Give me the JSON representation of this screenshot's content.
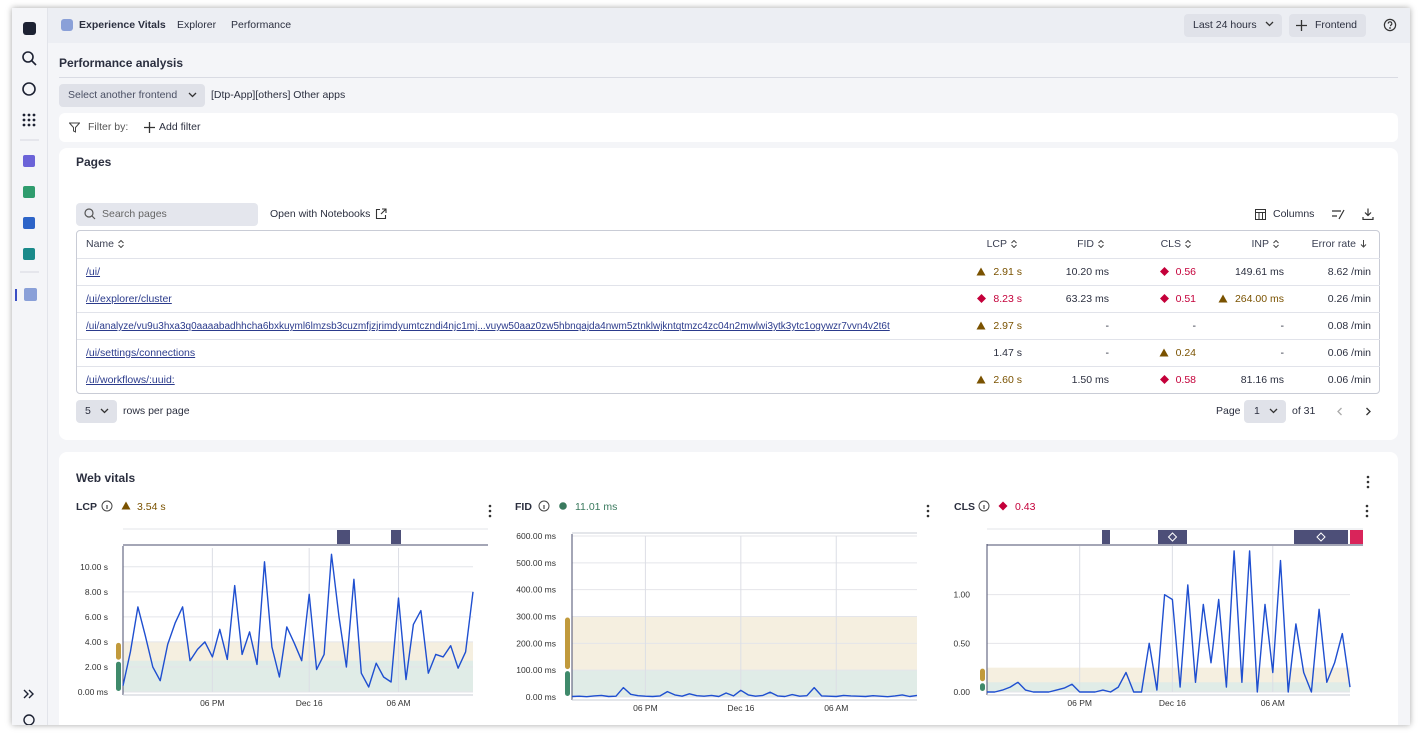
{
  "nav": {
    "app": "Experience Vitals",
    "tabs": [
      "Explorer",
      "Performance"
    ],
    "timeframe": "Last 24 hours",
    "frontend_button": "Frontend"
  },
  "header": {
    "title": "Performance analysis",
    "select_frontend": "Select another frontend",
    "current_frontend": "[Dtp-App][others] Other apps",
    "filter_label": "Filter by:",
    "add_filter": "Add filter"
  },
  "pages": {
    "title": "Pages",
    "search_placeholder": "Search pages",
    "open_notebooks": "Open with Notebooks",
    "columns_button": "Columns",
    "table": {
      "columns": [
        "Name",
        "LCP",
        "FID",
        "CLS",
        "INP",
        "Error rate"
      ],
      "rows": [
        [
          "/ui/",
          "2.91 s",
          "10.20 ms",
          "0.56",
          "149.61 ms",
          "8.62 /min"
        ],
        [
          "/ui/explorer/cluster",
          "8.23 s",
          "63.23 ms",
          "0.51",
          "264.00 ms",
          "0.26 /min"
        ],
        [
          "/ui/analyze/vu9u3hxa3q0aaaabadhhcha6bxkuyml6lmzsb3cuzmfjzjrimdyumtczndi4njc1mj...vuyw50aaz0zw5hbnqajda4nwm5ztnklwjkntqtmzc4zc04n2mwlwi3ytk3ytc1ogywzr7vvn4v2t6t",
          "2.97 s",
          "-",
          "-",
          "-",
          "0.08 /min"
        ],
        [
          "/ui/settings/connections",
          "1.47 s",
          "-",
          "0.24",
          "-",
          "0.06 /min"
        ],
        [
          "/ui/workflows/:uuid:",
          "2.60 s",
          "1.50 ms",
          "0.58",
          "81.16 ms",
          "0.06 /min"
        ]
      ]
    },
    "pagination": {
      "page_size": "5",
      "rows_per_page": "rows per page",
      "page_label": "Page",
      "page": "1",
      "page_count": "of 31"
    }
  },
  "web_vitals": {
    "title": "Web vitals"
  },
  "chart_data": [
    {
      "type": "line",
      "title": "LCP",
      "summary": "3.54 s",
      "color": "#1f4fd0",
      "grid": true,
      "x": [
        null,
        null,
        null,
        null,
        null,
        null,
        null,
        null,
        null,
        null,
        null,
        null,
        "06 PM",
        null,
        null,
        null,
        null,
        null,
        null,
        null,
        null,
        null,
        null,
        null,
        null,
        "Dec 16",
        null,
        null,
        null,
        null,
        null,
        null,
        null,
        null,
        null,
        null,
        null,
        "06 AM",
        null,
        null,
        null,
        null,
        null,
        null,
        null,
        null,
        null,
        null
      ],
      "values": [
        0.5,
        3.2,
        6.8,
        4.5,
        2.0,
        0.9,
        3.8,
        5.5,
        6.8,
        2.5,
        3.4,
        4.0,
        2.8,
        5.0,
        2.6,
        8.5,
        3.0,
        4.8,
        2.2,
        10.4,
        3.6,
        1.2,
        5.2,
        3.9,
        2.5,
        7.8,
        1.8,
        3.0,
        11.0,
        6.0,
        2.0,
        9.0,
        1.5,
        0.4,
        2.3,
        1.2,
        0.8,
        7.5,
        1.0,
        5.4,
        6.5,
        1.5,
        3.0,
        2.8,
        3.7,
        1.9,
        3.2,
        8.0
      ],
      "ylim": [
        0,
        11.5
      ],
      "yticks": [
        {
          "value": 0,
          "label": "0.00 ms"
        },
        {
          "value": 2,
          "label": "2.00 s"
        },
        {
          "value": 4,
          "label": "4.00 s"
        },
        {
          "value": 6,
          "label": "6.00 s"
        },
        {
          "value": 8,
          "label": "8.00 s"
        },
        {
          "value": 10,
          "label": "10.00 s"
        }
      ],
      "bands": [
        {
          "from": 0,
          "to": 2.5,
          "color": "#3f8a6b"
        },
        {
          "from": 2.5,
          "to": 4,
          "color": "#c19a3c"
        }
      ]
    },
    {
      "type": "line",
      "title": "FID",
      "summary": "11.01 ms",
      "color": "#1f4fd0",
      "grid": true,
      "x": [
        null,
        null,
        null,
        null,
        null,
        null,
        null,
        null,
        null,
        null,
        "06 PM",
        null,
        null,
        null,
        null,
        null,
        null,
        null,
        null,
        null,
        null,
        null,
        null,
        "Dec 16",
        null,
        null,
        null,
        null,
        null,
        null,
        null,
        null,
        null,
        null,
        null,
        null,
        "06 AM",
        null,
        null,
        null,
        null,
        null,
        null,
        null,
        null,
        null,
        null,
        null
      ],
      "values": [
        2,
        3,
        1,
        4,
        6,
        2,
        3,
        35,
        10,
        5,
        3,
        2,
        4,
        20,
        8,
        3,
        12,
        5,
        3,
        6,
        2,
        15,
        4,
        25,
        8,
        3,
        6,
        18,
        4,
        2,
        9,
        3,
        5,
        35,
        4,
        3,
        2,
        6,
        4,
        3,
        2,
        5,
        3,
        1,
        4,
        8,
        2,
        6
      ],
      "ylim": [
        0,
        600
      ],
      "yticks": [
        {
          "value": 0,
          "label": "0.00 ms"
        },
        {
          "value": 100,
          "label": "100.00 ms"
        },
        {
          "value": 200,
          "label": "200.00 ms"
        },
        {
          "value": 300,
          "label": "300.00 ms"
        },
        {
          "value": 400,
          "label": "400.00 ms"
        },
        {
          "value": 500,
          "label": "500.00 ms"
        },
        {
          "value": 600,
          "label": "600.00 ms"
        }
      ],
      "bands": [
        {
          "from": 0,
          "to": 100,
          "color": "#3f8a6b"
        },
        {
          "from": 100,
          "to": 300,
          "color": "#c19a3c"
        }
      ]
    },
    {
      "type": "line",
      "title": "CLS",
      "summary": "0.43",
      "color": "#1f4fd0",
      "grid": true,
      "x": [
        null,
        null,
        null,
        null,
        null,
        null,
        null,
        null,
        null,
        null,
        null,
        null,
        "06 PM",
        null,
        null,
        null,
        null,
        null,
        null,
        null,
        null,
        null,
        null,
        null,
        "Dec 16",
        null,
        null,
        null,
        null,
        null,
        null,
        null,
        null,
        null,
        null,
        null,
        null,
        "06 AM",
        null,
        null,
        null,
        null,
        null,
        null,
        null,
        null,
        null,
        null
      ],
      "values": [
        0.0,
        0.0,
        0.02,
        0.05,
        0.1,
        0.02,
        0.0,
        0.0,
        0.0,
        0.02,
        0.04,
        0.08,
        0.0,
        0.0,
        0.0,
        0.02,
        0.0,
        0.05,
        0.2,
        0.0,
        0.0,
        0.5,
        0.02,
        1.0,
        0.95,
        0.05,
        1.1,
        0.1,
        0.9,
        0.3,
        0.95,
        0.05,
        1.45,
        0.1,
        1.45,
        0.0,
        0.9,
        0.2,
        1.35,
        0.0,
        0.7,
        0.2,
        0.0,
        0.85,
        0.1,
        0.3,
        0.6,
        0.05
      ],
      "ylim": [
        0,
        1.5
      ],
      "yticks": [
        {
          "value": 0,
          "label": "0.00"
        },
        {
          "value": 0.5,
          "label": "0.50"
        },
        {
          "value": 1,
          "label": "1.00"
        }
      ],
      "bands": [
        {
          "from": 0,
          "to": 0.1,
          "color": "#3f8a6b"
        },
        {
          "from": 0.1,
          "to": 0.25,
          "color": "#c19a3c"
        }
      ]
    }
  ]
}
